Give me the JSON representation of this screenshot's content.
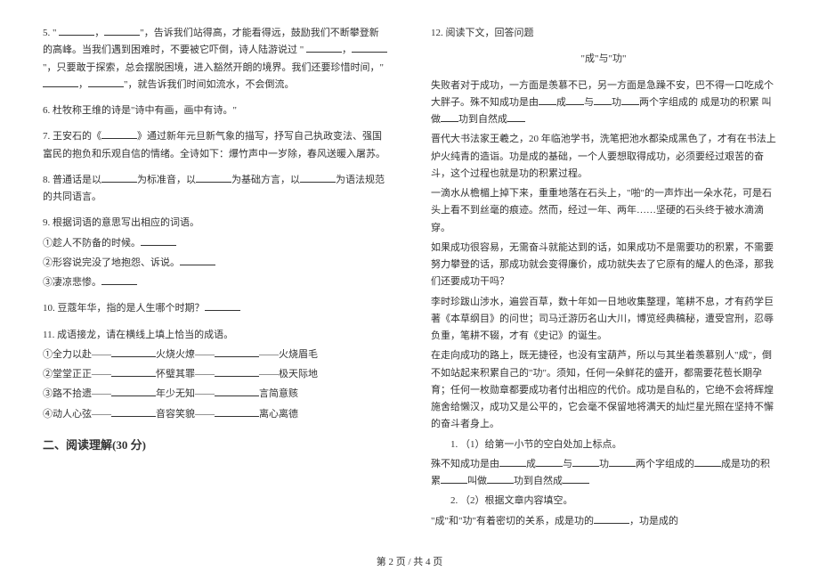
{
  "fontsize_body": 11,
  "fontsize_section": 13,
  "line_height": 1.75,
  "text_color": "#333333",
  "background_color": "#ffffff",
  "blank_border_color": "#333333",
  "left": {
    "q5": "5. \" ____，____\"，告诉我们站得高，才能看得远，鼓励我们不断攀登新的高峰。当我们遇到困难时，不要被它吓倒，诗人陆游说过 \" ____，____\"，只要敢于探索，总会摆脱困境，进入豁然开朗的境界。我们还要珍惜时间，\" ____，____\"，就告诉我们时间如流水，不会倒流。",
    "q6": "6. 杜牧称王维的诗是\"诗中有画，画中有诗。\"",
    "q7": "7. 王安石的《____》通过新年元旦新气象的描写，抒写自己执政变法、强国富民的抱负和乐观自信的情绪。全诗如下：爆竹声中一岁除，春风送暖入屠苏。",
    "q8": "8. 普通话是以____为标准音，以____为基础方言，以____为语法规范的共同语言。",
    "q9": "9. 根据词语的意思写出相应的词语。",
    "q9a": "①趁人不防备的时候。____",
    "q9b": "②形容说完没了地抱怨、诉说。____",
    "q9c": "③凄凉悲惨。____",
    "q10": "10. 豆蔻年华，指的是人生哪个时期？____",
    "q11": "11. 成语接龙，请在横线上填上恰当的成语。",
    "q11a": "①全力以赴——",
    "q11a2": "火烧火燎——",
    "q11a3": "——火烧眉毛",
    "q11b": "②堂堂正正——",
    "q11b2": "怀璧其罪——",
    "q11b3": "——极天际地",
    "q11c": "③路不拾遗——",
    "q11c2": "年少无知——",
    "q11c3": "言简意赅",
    "q11d": "④动人心弦——",
    "q11d2": "音容笑貌——",
    "q11d3": "离心离德",
    "section2": "二、阅读理解(30 分)"
  },
  "right": {
    "q12": "12. 阅读下文，回答问题",
    "title": "\"成\"与\"功\"",
    "p1": "失败者对于成功，一方面是羡慕不已，另一方面是急躁不安，巴不得一口吃成个大胖子。殊不知成功是由__成__与__功__两个字组成的 成是功的积累 叫做__功到自然成__",
    "p2": "晋代大书法家王羲之，20 年临池学书，洗笔把池水都染成黑色了，才有在书法上炉火纯青的造诣。功是成的基础，一个人要想取得成功，必须要经过艰苦的奋斗，这个过程也就是功的积累过程。",
    "p3": "一滴水从檐楣上掉下来，重重地落在石头上，\"啪\"的一声炸出一朵水花，可是石头上看不到丝毫的痕迹。然而，经过一年、两年……坚硬的石头终于被水滴滴穿。",
    "p4": "如果成功很容易，无需奋斗就能达到的话，如果成功不是需要功的积累，不需要努力攀登的话，那成功就会变得廉价，成功就失去了它原有的耀人的色泽，那我们还要成功干吗？",
    "p5": "李时珍跋山涉水，遍尝百草，数十年如一日地收集整理，笔耕不息，才有药学巨著《本草纲目》的问世；司马迁游历名山大川，博览经典稿秘，遭受宫刑，忍辱负重，笔耕不辍，才有《史记》的诞生。",
    "p6": "在走向成功的路上，既无捷径，也没有宝葫芦，所以与其坐着羡慕别人\"成\"，倒不如站起来积累自己的\"功\"。须知，任何一朵鲜花的盛开，都需要花苞长期孕育；任何一枚勋章都要成功者付出相应的代价。成功是自私的，它绝不会将辉煌施舍给懒汉，成功又是公平的，它会毫不保留地将满天的灿烂星光照在坚持不懈的奋斗者身上。",
    "sub1_label": "1. （1）给第一小节的空白处加上标点。",
    "sub1_text": "殊不知成功是由____成____与____功____两个字组成的____成是功的积累____叫做____功到自然成____",
    "sub2_label": "2. （2）根据文章内容填空。",
    "sub2_text": "\"成\"和\"功\"有着密切的关系，成是功的____，功是成的"
  },
  "footer": "第 2 页  /  共 4 页"
}
